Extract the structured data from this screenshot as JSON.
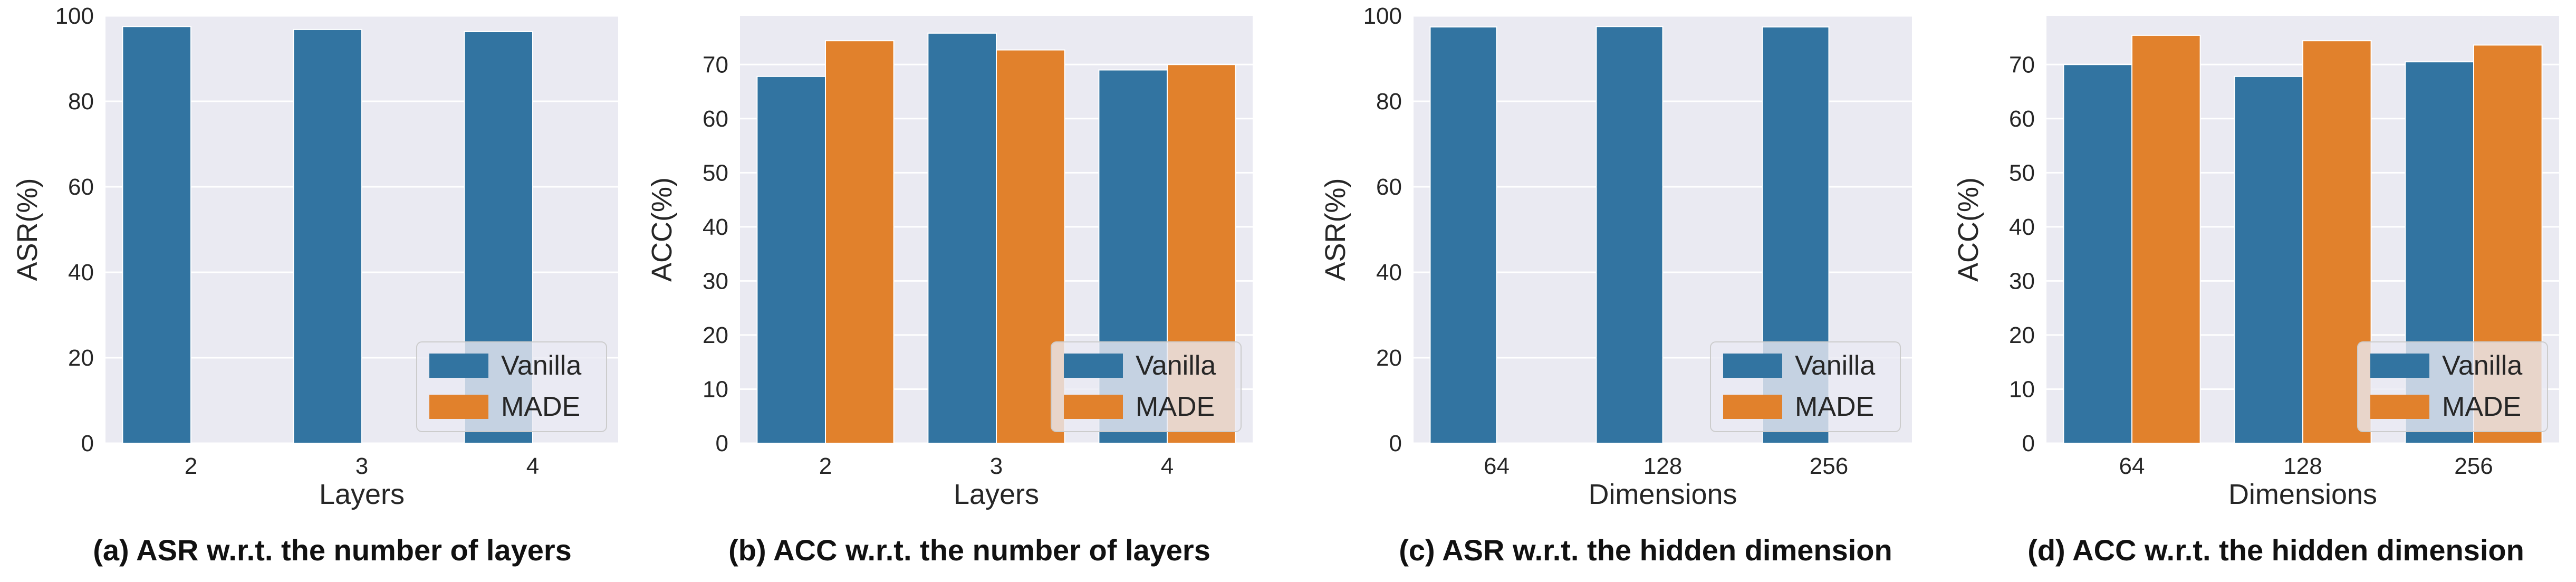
{
  "colors": {
    "plot_bg": "#eaeaf2",
    "grid": "#ffffff",
    "vanilla": "#3274a1",
    "made": "#e1812c",
    "text": "#262626"
  },
  "chart_data": [
    {
      "type": "bar",
      "caption": "(a) ASR w.r.t. the number of layers",
      "xlabel": "Layers",
      "ylabel": "ASR(%)",
      "categories": [
        "2",
        "3",
        "4"
      ],
      "ylim": [
        0,
        100
      ],
      "yticks": [
        0,
        20,
        40,
        60,
        80,
        100
      ],
      "series": [
        {
          "name": "Vanilla",
          "values": [
            97.5,
            96.8,
            96.3
          ]
        },
        {
          "name": "MADE",
          "values": [
            0,
            0,
            0
          ]
        }
      ],
      "legend": {
        "placement": "lower-right",
        "entries": [
          "Vanilla",
          "MADE"
        ]
      }
    },
    {
      "type": "bar",
      "caption": "(b) ACC w.r.t. the number of layers",
      "xlabel": "Layers",
      "ylabel": "ACC(%)",
      "categories": [
        "2",
        "3",
        "4"
      ],
      "ylim": [
        0,
        79
      ],
      "yticks": [
        0,
        10,
        20,
        30,
        40,
        50,
        60,
        70
      ],
      "series": [
        {
          "name": "Vanilla",
          "values": [
            67.8,
            75.8,
            69.0
          ]
        },
        {
          "name": "MADE",
          "values": [
            74.4,
            72.7,
            70.0
          ]
        }
      ],
      "legend": {
        "placement": "lower-right",
        "entries": [
          "Vanilla",
          "MADE"
        ]
      }
    },
    {
      "type": "bar",
      "caption": "(c) ASR w.r.t. the hidden dimension",
      "xlabel": "Dimensions",
      "ylabel": "ASR(%)",
      "categories": [
        "64",
        "128",
        "256"
      ],
      "ylim": [
        0,
        100
      ],
      "yticks": [
        0,
        20,
        40,
        60,
        80,
        100
      ],
      "series": [
        {
          "name": "Vanilla",
          "values": [
            97.4,
            97.5,
            97.4
          ]
        },
        {
          "name": "MADE",
          "values": [
            0,
            0,
            0
          ]
        }
      ],
      "legend": {
        "placement": "lower-right",
        "entries": [
          "Vanilla",
          "MADE"
        ]
      }
    },
    {
      "type": "bar",
      "caption": "(d) ACC w.r.t. the hidden dimension",
      "xlabel": "Dimensions",
      "ylabel": "ACC(%)",
      "categories": [
        "64",
        "128",
        "256"
      ],
      "ylim": [
        0,
        79
      ],
      "yticks": [
        0,
        10,
        20,
        30,
        40,
        50,
        60,
        70
      ],
      "series": [
        {
          "name": "Vanilla",
          "values": [
            70.0,
            67.8,
            70.5
          ]
        },
        {
          "name": "MADE",
          "values": [
            75.4,
            74.4,
            73.6
          ]
        }
      ],
      "legend": {
        "placement": "lower-right",
        "entries": [
          "Vanilla",
          "MADE"
        ]
      }
    }
  ]
}
